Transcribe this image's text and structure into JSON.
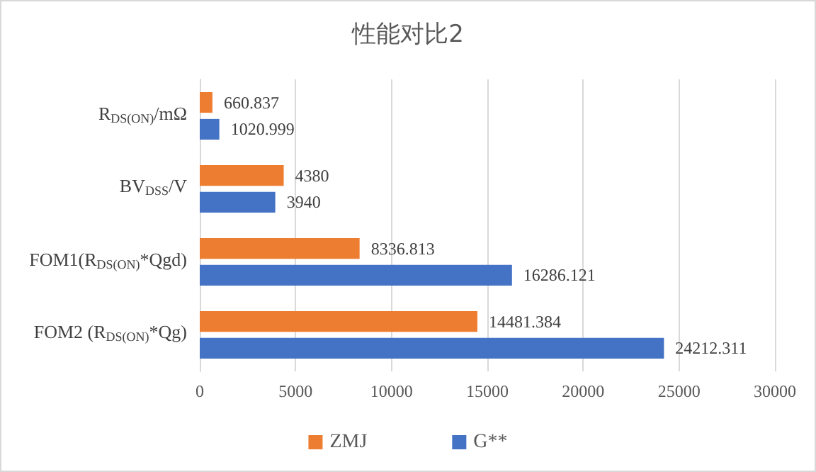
{
  "chart_data": {
    "type": "bar",
    "orientation": "horizontal",
    "title": "性能对比2",
    "categories": [
      "R$_{DS(ON)}$/mΩ",
      "BV$_{DSS}$/V",
      "FOM1(R$_{DS(ON)}$*Qgd)",
      "FOM2 (R$_{DS(ON)}$*Qg)"
    ],
    "series": [
      {
        "name": "ZMJ",
        "color": "#ed7d31",
        "values": [
          660.837,
          4380,
          8336.813,
          14481.384
        ]
      },
      {
        "name": "G**",
        "color": "#4472c4",
        "values": [
          1020.999,
          3940,
          16286.121,
          24212.311
        ]
      }
    ],
    "xlim": [
      0,
      30000
    ],
    "xticks": [
      0,
      5000,
      10000,
      15000,
      20000,
      25000,
      30000
    ],
    "grid": "x",
    "legend": "bottom",
    "data_labels": true
  }
}
